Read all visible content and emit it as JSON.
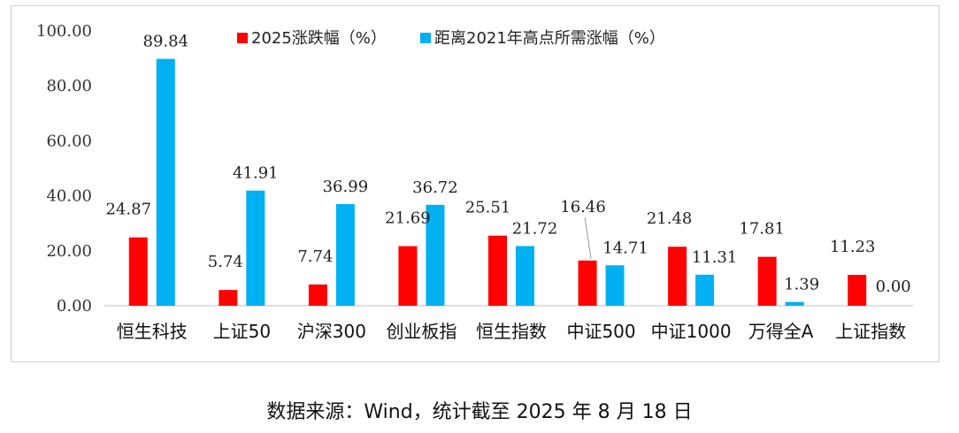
{
  "chart_data": {
    "type": "bar",
    "categories": [
      "恒生科技",
      "上证50",
      "沪深300",
      "创业板指",
      "恒生指数",
      "中证500",
      "中证1000",
      "万得全A",
      "上证指数"
    ],
    "series": [
      {
        "name": "2025涨跌幅（%）",
        "color": "#ff0000",
        "values": [
          24.87,
          5.74,
          7.74,
          21.69,
          25.51,
          16.46,
          21.48,
          17.81,
          11.23
        ],
        "labels": [
          "24.87",
          "5.74",
          "7.74",
          "21.69",
          "25.51",
          "16.46",
          "21.48",
          "17.81",
          "11.23"
        ]
      },
      {
        "name": "距离2021年高点所需涨幅（%）",
        "color": "#00b0f0",
        "values": [
          89.84,
          41.91,
          36.99,
          36.72,
          21.72,
          14.71,
          11.31,
          1.39,
          0.0
        ],
        "labels": [
          "89.84",
          "41.91",
          "36.99",
          "36.72",
          "21.72",
          "14.71",
          "11.31",
          "1.39",
          "0.00"
        ]
      }
    ],
    "yticks": [
      "0.00",
      "20.00",
      "40.00",
      "60.00",
      "80.00",
      "100.00"
    ],
    "ylim": [
      0,
      100
    ],
    "grid": false,
    "legend": "top-center"
  },
  "source_note": "数据来源：Wind，统计截至 2025 年 8 月 18 日"
}
